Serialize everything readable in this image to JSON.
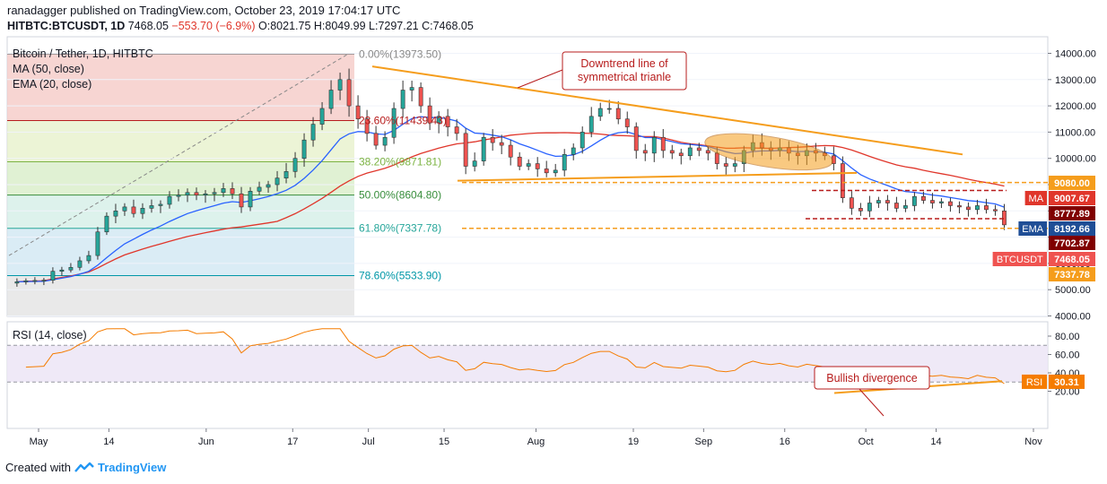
{
  "header": {
    "user": "ranadagger",
    "published": "published on TradingView.com, October 23, 2019 17:04:17 UTC",
    "symbol": "HITBTC:BTCUSDT, 1D",
    "last": "7468.05",
    "change": "−553.70 (−6.9%)",
    "ohlc": "O:8021.75 H:8049.99 L:7297.21 C:7468.05"
  },
  "legend": {
    "title": "Bitcoin / Tether, 1D, HITBTC",
    "ma": "MA (50, close)",
    "ema": "EMA (20, close)"
  },
  "fib_levels": [
    {
      "label": "0.00%(13973.50)",
      "value": 13973.5
    },
    {
      "label": "23.60%(11439.43)",
      "value": 11439.43
    },
    {
      "label": "38.20%(9871.81)",
      "value": 9871.81
    },
    {
      "label": "50.00%(8604.80)",
      "value": 8604.8
    },
    {
      "label": "61.80%(7337.78)",
      "value": 7337.78
    },
    {
      "label": "78.60%(5533.90)",
      "value": 5533.9
    }
  ],
  "annotations": {
    "downtrend": [
      "Downtrend line of",
      "symmetrical trianle"
    ],
    "divergence": "Bullish divergence"
  },
  "price_badges": [
    {
      "label": "9080.00",
      "value": 9080.0,
      "color": "#f59d1c"
    },
    {
      "tag": "MA",
      "label": "9007.67",
      "value": 9007.67,
      "color": "#e0362b"
    },
    {
      "label": "8777.89",
      "value": 8777.89,
      "color": "#800000"
    },
    {
      "tag": "EMA",
      "label": "8192.66",
      "value": 8192.66,
      "color": "#1f4e96"
    },
    {
      "label": "7702.87",
      "value": 7702.87,
      "color": "#800000"
    },
    {
      "tag": "BTCUSDT",
      "label": "7468.05",
      "value": 7468.05,
      "color": "#ef5350"
    },
    {
      "label": "7337.78",
      "value": 7337.78,
      "color": "#f59d1c"
    }
  ],
  "rsi": {
    "title": "RSI (14, close)",
    "tag": "RSI",
    "value_label": "30.31",
    "value": 30.31,
    "axis_labels": [
      "80.00",
      "60.00",
      "40.00",
      "20.00"
    ]
  },
  "chart_data": {
    "type": "candlestick",
    "title": "Bitcoin / Tether, 1D, HITBTC",
    "y_axis_labels": [
      "14000.00",
      "13000.00",
      "12000.00",
      "11000.00",
      "10000.00",
      "9000.00",
      "8000.00",
      "7000.00",
      "6000.00",
      "5000.00",
      "4000.00"
    ],
    "ylim": [
      4000,
      14000
    ],
    "x_tick_labels": [
      "May",
      "14",
      "Jun",
      "17",
      "Jul",
      "15",
      "Aug",
      "19",
      "Sep",
      "16",
      "Oct",
      "14",
      "Nov"
    ],
    "x_tick_dates": [
      "2019-05-01",
      "2019-05-14",
      "2019-06-01",
      "2019-06-17",
      "2019-07-01",
      "2019-07-15",
      "2019-08-01",
      "2019-08-19",
      "2019-09-01",
      "2019-09-16",
      "2019-10-01",
      "2019-10-14",
      "2019-11-01"
    ],
    "close_series": [
      5300,
      5340,
      5350,
      5360,
      5700,
      5750,
      5850,
      6100,
      6300,
      7200,
      7800,
      8000,
      8150,
      7900,
      8100,
      8200,
      8250,
      8550,
      8600,
      8700,
      8600,
      8650,
      8700,
      8850,
      8650,
      8150,
      8750,
      8900,
      9000,
      9250,
      9500,
      10000,
      10700,
      11300,
      11900,
      12600,
      13000,
      12000,
      11500,
      10950,
      10500,
      10800,
      11900,
      12600,
      12700,
      12000,
      11350,
      11600,
      11200,
      10950,
      9700,
      9900,
      10800,
      10600,
      10500,
      10050,
      9700,
      9800,
      9600,
      9450,
      9550,
      10150,
      10400,
      11000,
      11600,
      11900,
      11900,
      11500,
      11200,
      10300,
      10200,
      10800,
      10300,
      10200,
      10100,
      10400,
      10300,
      10200,
      9800,
      9700,
      9800,
      10300,
      10600,
      10400,
      10300,
      10400,
      10200,
      10100,
      10300,
      10200,
      10100,
      9800,
      8500,
      8100,
      8000,
      8300,
      8400,
      8300,
      8100,
      8200,
      8550,
      8400,
      8300,
      8350,
      8200,
      8150,
      8050,
      8200,
      8050,
      8000,
      7468.05
    ],
    "series": [
      {
        "name": "MA (50, close)",
        "color": "#e0362b"
      },
      {
        "name": "EMA (20, close)",
        "color": "#2962ff"
      }
    ],
    "up_color": "#26a69a",
    "down_color": "#ef5350"
  }
}
